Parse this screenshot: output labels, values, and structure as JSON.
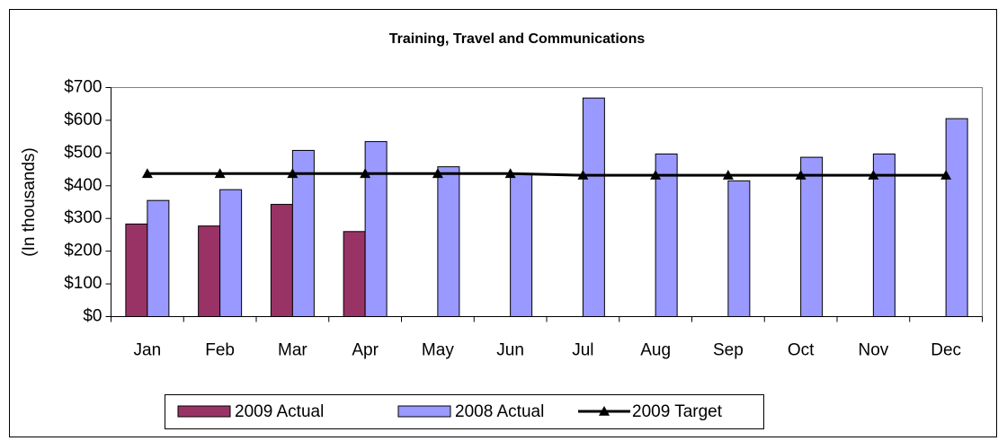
{
  "chart_data": {
    "type": "bar",
    "title": "Training, Travel and Communications",
    "y_label": "(In thousands)",
    "categories": [
      "Jan",
      "Feb",
      "Mar",
      "Apr",
      "May",
      "Jun",
      "Jul",
      "Aug",
      "Sep",
      "Oct",
      "Nov",
      "Dec"
    ],
    "series": [
      {
        "name": "2009 Actual",
        "type": "bar",
        "color": "#993366",
        "values": [
          283,
          277,
          343,
          260,
          null,
          null,
          null,
          null,
          null,
          null,
          null,
          null
        ]
      },
      {
        "name": "2008 Actual",
        "type": "bar",
        "color": "#9999ff",
        "values": [
          355,
          388,
          508,
          535,
          458,
          435,
          668,
          497,
          415,
          487,
          497,
          605
        ]
      },
      {
        "name": "2009 Target",
        "type": "line",
        "color": "#000000",
        "values": [
          437,
          437,
          437,
          437,
          437,
          437,
          432,
          432,
          432,
          432,
          432,
          432
        ]
      }
    ],
    "ylim": [
      0,
      700
    ],
    "yticks": [
      {
        "value": 0,
        "label": "$0"
      },
      {
        "value": 100,
        "label": "$100"
      },
      {
        "value": 200,
        "label": "$200"
      },
      {
        "value": 300,
        "label": "$300"
      },
      {
        "value": 400,
        "label": "$400"
      },
      {
        "value": 500,
        "label": "$500"
      },
      {
        "value": 600,
        "label": "$600"
      },
      {
        "value": 700,
        "label": "$700"
      }
    ],
    "legend": "bottom"
  }
}
